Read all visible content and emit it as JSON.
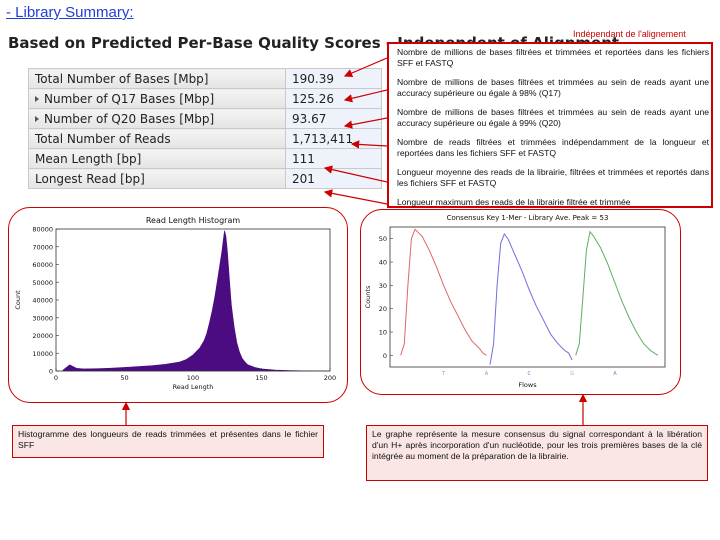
{
  "top_link": "- Library Summary:",
  "heading": "Based on Predicted Per-Base Quality Scores - Independent of Alignment",
  "side_label": "Indépendant de l'alignement",
  "summary": [
    {
      "label": "Total Number of Bases [Mbp]",
      "value": "190.39",
      "expandable": false
    },
    {
      "label": "Number of Q17 Bases [Mbp]",
      "value": "125.26",
      "expandable": true
    },
    {
      "label": "Number of Q20 Bases [Mbp]",
      "value": "93.67",
      "expandable": true
    },
    {
      "label": "Total Number of Reads",
      "value": "1,713,411",
      "expandable": false
    },
    {
      "label": "Mean Length [bp]",
      "value": "111",
      "expandable": false
    },
    {
      "label": "Longest Read [bp]",
      "value": "201",
      "expandable": false
    }
  ],
  "notes": [
    "Nombre de millions de bases filtrées et trimmées et reportées dans les fichiers SFF et FASTQ",
    "Nombre de millions de bases filtrées et trimmées au sein de reads ayant une accuracy supérieure ou égale à 98% (Q17)",
    "Nombre de millions de bases filtrées et trimmées au sein de reads ayant une accuracy supérieure ou égale à 99% (Q20)",
    "Nombre de reads filtrées et trimmées indépendamment de la longueur et reportées dans les fichiers SFF et FASTQ",
    "Longueur moyenne des reads de la librairie, filtrées et trimmées et reportés dans les fichiers SFF et FASTQ",
    "Longueur maximum des reads de la librairie filtrée et trimmée"
  ],
  "captions": {
    "histogram": "Histogramme des longueurs de reads trimmées et présentes dans le fichier SFF",
    "consensus": "Le graphe représente la mesure consensus du signal correspondant à la libération d'un H+ après incorporation d'un nucléotide, pour les trois premières bases de la clé intégrée au moment de la préparation de la librairie."
  },
  "colors": {
    "accent_red": "#cc0000",
    "histogram_fill": "#4b0c82"
  },
  "chart_data": [
    {
      "type": "bar",
      "title": "Read Length Histogram",
      "xlabel": "Read Length",
      "ylabel": "Count",
      "xlim": [
        0,
        200
      ],
      "ylim": [
        0,
        80000
      ],
      "xticks": [
        0,
        50,
        100,
        150,
        200
      ],
      "yticks": [
        0,
        10000,
        20000,
        30000,
        40000,
        50000,
        60000,
        70000,
        80000
      ],
      "x": [
        5,
        10,
        15,
        20,
        30,
        40,
        50,
        60,
        70,
        80,
        90,
        95,
        100,
        105,
        108,
        110,
        112,
        114,
        116,
        118,
        120,
        121,
        122,
        123,
        124,
        125,
        126,
        127,
        128,
        130,
        132,
        134,
        136,
        138,
        140,
        145,
        150,
        160,
        170,
        180,
        190,
        200
      ],
      "values": [
        500,
        3500,
        1500,
        1200,
        1300,
        1600,
        2000,
        2500,
        3000,
        3800,
        5000,
        6500,
        9000,
        13000,
        17000,
        21000,
        27000,
        34000,
        42000,
        52000,
        62000,
        67000,
        73000,
        79000,
        76000,
        68000,
        58000,
        47000,
        37000,
        25000,
        16000,
        10500,
        7000,
        5000,
        3500,
        2000,
        1200,
        500,
        200,
        100,
        50,
        0
      ]
    },
    {
      "type": "line",
      "title": "Consensus Key 1-Mer - Library Ave. Peak = 53",
      "xlabel": "Flows",
      "ylabel": "Counts",
      "ylim": [
        0,
        55
      ],
      "yticks": [
        0,
        10,
        20,
        30,
        40,
        50
      ],
      "tick_labels": [
        "T",
        "A",
        "C",
        "G",
        "A"
      ],
      "series": [
        {
          "color": "#e06666",
          "x": [
            0,
            1,
            2,
            3,
            4,
            6,
            8,
            10,
            12,
            14,
            16,
            18,
            20,
            22,
            23,
            24
          ],
          "values": [
            0,
            5,
            30,
            50,
            54,
            51,
            45,
            38,
            30,
            23,
            17,
            11,
            6,
            3,
            1,
            0
          ]
        },
        {
          "color": "#6f6fe0",
          "x": [
            25,
            26,
            27,
            28,
            29,
            30,
            32,
            34,
            36,
            38,
            40,
            42,
            44,
            46,
            47,
            48
          ],
          "values": [
            -4,
            5,
            30,
            48,
            52,
            50,
            43,
            36,
            28,
            21,
            15,
            9,
            5,
            2,
            1,
            -2
          ]
        },
        {
          "color": "#5fae5f",
          "x": [
            49,
            50,
            51,
            52,
            53,
            54,
            56,
            58,
            60,
            62,
            64,
            66,
            68,
            70,
            72
          ],
          "values": [
            0,
            5,
            25,
            45,
            53,
            51,
            46,
            39,
            31,
            23,
            16,
            10,
            5,
            2,
            0
          ]
        }
      ]
    }
  ]
}
